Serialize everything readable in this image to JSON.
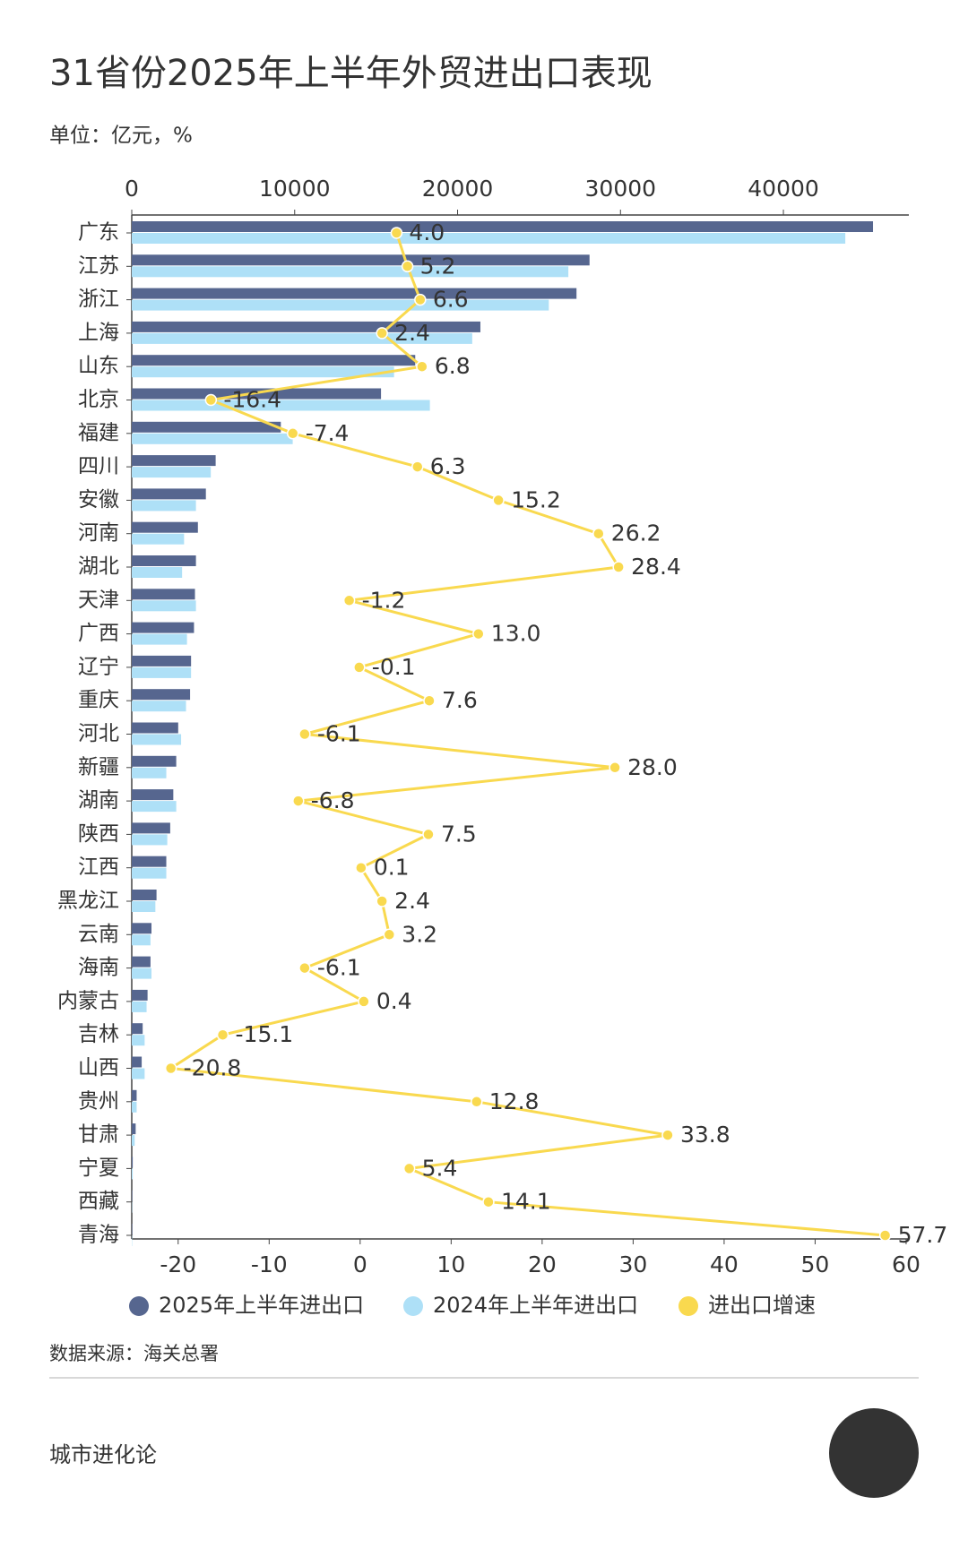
{
  "chart_data": {
    "type": "bar",
    "orientation": "horizontal",
    "title": "31省份2025年上半年外贸进出口表现",
    "subtitle": "单位：亿元，%",
    "categories": [
      "广东",
      "江苏",
      "浙江",
      "上海",
      "山东",
      "北京",
      "福建",
      "四川",
      "安徽",
      "河南",
      "湖北",
      "天津",
      "广西",
      "辽宁",
      "重庆",
      "河北",
      "新疆",
      "湖南",
      "陕西",
      "江西",
      "黑龙江",
      "云南",
      "海南",
      "内蒙古",
      "吉林",
      "山西",
      "贵州",
      "甘肃",
      "宁夏",
      "西藏",
      "青海"
    ],
    "xlim": [
      0,
      47700
    ],
    "xticks": [
      0,
      10000,
      20000,
      30000,
      40000
    ],
    "x2lim": [
      -25.1,
      60.3
    ],
    "x2ticks": [
      -20,
      -10,
      0,
      10,
      20,
      30,
      40,
      50,
      60
    ],
    "series": [
      {
        "name": "2025年上半年进出口",
        "color": "#56668f",
        "values": [
          45500,
          28100,
          27300,
          21400,
          17400,
          15300,
          9150,
          5150,
          4550,
          4060,
          3940,
          3880,
          3820,
          3640,
          3580,
          2850,
          2730,
          2550,
          2360,
          2120,
          1520,
          1210,
          1150,
          970,
          670,
          610,
          300,
          240,
          60,
          30,
          30
        ]
      },
      {
        "name": "2024年上半年进出口",
        "color": "#aee0f7",
        "values": [
          43800,
          26800,
          25600,
          20900,
          16100,
          18300,
          9880,
          4850,
          3940,
          3210,
          3090,
          3940,
          3390,
          3640,
          3330,
          3030,
          2120,
          2730,
          2180,
          2120,
          1450,
          1150,
          1210,
          910,
          790,
          790,
          300,
          180,
          60,
          20,
          20
        ]
      },
      {
        "name": "进出口增速",
        "color": "#f9d94f",
        "type": "line",
        "axis": "x2",
        "values": [
          4.0,
          5.2,
          6.6,
          2.4,
          6.8,
          -16.4,
          -7.4,
          6.3,
          15.2,
          26.2,
          28.4,
          -1.2,
          13.0,
          -0.1,
          7.6,
          -6.1,
          28.0,
          -6.8,
          7.5,
          0.1,
          2.4,
          3.2,
          -6.1,
          0.4,
          -15.1,
          -20.8,
          12.8,
          33.8,
          5.4,
          14.1,
          57.7
        ],
        "value_labels": [
          "4.0",
          "5.2",
          "6.6",
          "2.4",
          "6.8",
          "-16.4",
          "-7.4",
          "6.3",
          "15.2",
          "26.2",
          "28.4",
          "-1.2",
          "13.0",
          "-0.1",
          "7.6",
          "-6.1",
          "28.0",
          "-6.8",
          "7.5",
          "0.1",
          "2.4",
          "3.2",
          "-6.1",
          "0.4",
          "-15.1",
          "-20.8",
          "12.8",
          "33.8",
          "5.4",
          "14.1",
          "57.7"
        ]
      }
    ]
  },
  "footer": {
    "source": "数据来源：海关总署",
    "brand": "城市进化论"
  }
}
